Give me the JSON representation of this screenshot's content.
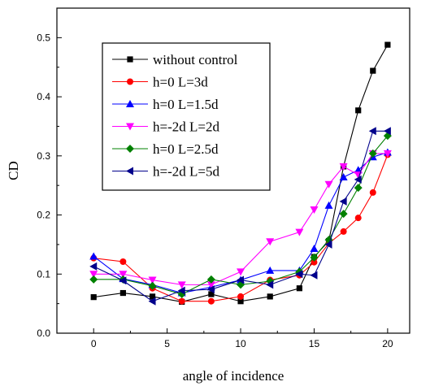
{
  "chart_data": {
    "type": "line",
    "title": "",
    "xlabel": "angle of incidence",
    "ylabel": "CD",
    "xlim": [
      -2.5,
      21.5
    ],
    "ylim": [
      0.0,
      0.55
    ],
    "x_ticks": [
      0,
      5,
      10,
      15,
      20
    ],
    "y_ticks": [
      0.0,
      0.1,
      0.2,
      0.3,
      0.4,
      0.5
    ],
    "x_tick_labels": [
      "0",
      "5",
      "10",
      "15",
      "20"
    ],
    "y_tick_labels": [
      "0.0",
      "0.1",
      "0.2",
      "0.3",
      "0.4",
      "0.5"
    ],
    "grid": false,
    "legend_position": "upper-left",
    "series": [
      {
        "name": "without control",
        "color": "#000000",
        "marker": "square",
        "points": [
          [
            0,
            0.061
          ],
          [
            2,
            0.068
          ],
          [
            4,
            0.062
          ],
          [
            6,
            0.053
          ],
          [
            8,
            0.066
          ],
          [
            10,
            0.054
          ],
          [
            12,
            0.062
          ],
          [
            14,
            0.076
          ],
          [
            15,
            0.129
          ],
          [
            16,
            0.156
          ],
          [
            17,
            0.282
          ],
          [
            18,
            0.377
          ],
          [
            19,
            0.444
          ],
          [
            20,
            0.488
          ]
        ]
      },
      {
        "name": "h=0 L=3d",
        "color": "#ff0000",
        "marker": "circle",
        "points": [
          [
            0,
            0.127
          ],
          [
            2,
            0.121
          ],
          [
            4,
            0.076
          ],
          [
            6,
            0.054
          ],
          [
            8,
            0.054
          ],
          [
            10,
            0.062
          ],
          [
            12,
            0.09
          ],
          [
            14,
            0.098
          ],
          [
            15,
            0.12
          ],
          [
            16,
            0.152
          ],
          [
            17,
            0.172
          ],
          [
            18,
            0.195
          ],
          [
            19,
            0.238
          ],
          [
            20,
            0.302
          ]
        ]
      },
      {
        "name": "h=0 L=1.5d",
        "color": "#0000ff",
        "marker": "triangle-up",
        "points": [
          [
            0,
            0.13
          ],
          [
            2,
            0.092
          ],
          [
            4,
            0.082
          ],
          [
            6,
            0.068
          ],
          [
            8,
            0.078
          ],
          [
            10,
            0.09
          ],
          [
            12,
            0.106
          ],
          [
            14,
            0.106
          ],
          [
            15,
            0.143
          ],
          [
            16,
            0.216
          ],
          [
            17,
            0.264
          ],
          [
            18,
            0.276
          ],
          [
            19,
            0.298
          ],
          [
            20,
            0.306
          ]
        ]
      },
      {
        "name": "h=-2d L=2d",
        "color": "#ff00ff",
        "marker": "triangle-down",
        "points": [
          [
            0,
            0.1
          ],
          [
            2,
            0.1
          ],
          [
            4,
            0.09
          ],
          [
            6,
            0.082
          ],
          [
            8,
            0.082
          ],
          [
            10,
            0.104
          ],
          [
            12,
            0.155
          ],
          [
            14,
            0.171
          ],
          [
            15,
            0.209
          ],
          [
            16,
            0.252
          ],
          [
            17,
            0.282
          ],
          [
            18,
            0.268
          ],
          [
            19,
            0.304
          ],
          [
            20,
            0.304
          ]
        ]
      },
      {
        "name": "h=0 L=2.5d",
        "color": "#008000",
        "marker": "diamond",
        "points": [
          [
            0,
            0.091
          ],
          [
            2,
            0.091
          ],
          [
            4,
            0.08
          ],
          [
            6,
            0.066
          ],
          [
            8,
            0.091
          ],
          [
            10,
            0.082
          ],
          [
            12,
            0.088
          ],
          [
            14,
            0.104
          ],
          [
            15,
            0.128
          ],
          [
            16,
            0.158
          ],
          [
            17,
            0.202
          ],
          [
            18,
            0.246
          ],
          [
            19,
            0.304
          ],
          [
            20,
            0.334
          ]
        ]
      },
      {
        "name": "h=-2d L=5d",
        "color": "#00008b",
        "marker": "triangle-left",
        "points": [
          [
            0,
            0.113
          ],
          [
            2,
            0.089
          ],
          [
            4,
            0.054
          ],
          [
            6,
            0.072
          ],
          [
            8,
            0.074
          ],
          [
            10,
            0.09
          ],
          [
            12,
            0.082
          ],
          [
            14,
            0.1
          ],
          [
            15,
            0.098
          ],
          [
            16,
            0.15
          ],
          [
            17,
            0.223
          ],
          [
            18,
            0.26
          ],
          [
            19,
            0.342
          ],
          [
            20,
            0.342
          ]
        ]
      }
    ]
  }
}
